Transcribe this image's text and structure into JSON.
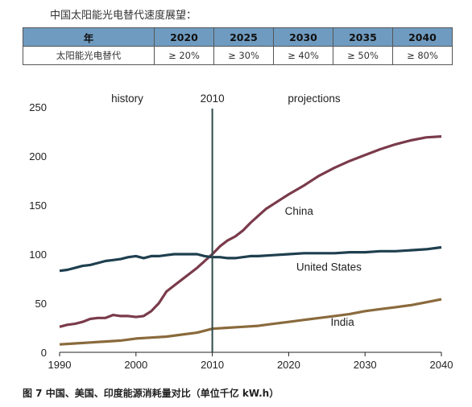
{
  "intro": "中国太阳能光电替代速度展望：",
  "table": {
    "header": [
      "年",
      "2020",
      "2025",
      "2030",
      "2035",
      "2040"
    ],
    "row_label": "太阳能光电替代",
    "row_values": [
      "≥ 20%",
      "≥ 30%",
      "≥ 40%",
      "≥ 50%",
      "≥ 80%"
    ]
  },
  "caption": "图 7   中国、美国、印度能源消耗量对比（单位千亿 kW.h）",
  "chart_data": {
    "type": "line",
    "title": "",
    "xlabel": "",
    "ylabel": "",
    "xlim": [
      1990,
      2040
    ],
    "ylim": [
      0,
      250
    ],
    "xticks": [
      1990,
      2000,
      2010,
      2020,
      2030,
      2040
    ],
    "yticks": [
      0,
      50,
      100,
      150,
      200,
      250
    ],
    "grid": false,
    "annotations": {
      "history": "history",
      "split_year": 2010,
      "split_label": "2010",
      "projections": "projections"
    },
    "series": [
      {
        "name": "China",
        "color": "#7a3b4b",
        "x": [
          1990,
          1991,
          1992,
          1993,
          1994,
          1995,
          1996,
          1997,
          1998,
          1999,
          2000,
          2001,
          2002,
          2003,
          2004,
          2005,
          2006,
          2007,
          2008,
          2009,
          2010,
          2011,
          2012,
          2013,
          2014,
          2015,
          2016,
          2017,
          2018,
          2019,
          2020,
          2022,
          2024,
          2026,
          2028,
          2030,
          2032,
          2034,
          2036,
          2038,
          2040
        ],
        "y": [
          26,
          28,
          29,
          31,
          34,
          35,
          35,
          38,
          37,
          37,
          36,
          37,
          42,
          50,
          62,
          68,
          74,
          80,
          86,
          93,
          100,
          108,
          114,
          118,
          124,
          132,
          139,
          146,
          151,
          156,
          161,
          170,
          180,
          188,
          195,
          201,
          207,
          212,
          216,
          219,
          220
        ]
      },
      {
        "name": "United States",
        "color": "#1f3f4f",
        "x": [
          1990,
          1991,
          1992,
          1993,
          1994,
          1995,
          1996,
          1997,
          1998,
          1999,
          2000,
          2001,
          2002,
          2003,
          2004,
          2005,
          2006,
          2007,
          2008,
          2009,
          2010,
          2011,
          2012,
          2013,
          2014,
          2015,
          2016,
          2018,
          2020,
          2022,
          2024,
          2026,
          2028,
          2030,
          2032,
          2034,
          2036,
          2038,
          2040
        ],
        "y": [
          83,
          84,
          86,
          88,
          89,
          91,
          93,
          94,
          95,
          97,
          98,
          96,
          98,
          98,
          99,
          100,
          100,
          100,
          100,
          98,
          97,
          97,
          96,
          96,
          97,
          98,
          98,
          99,
          100,
          101,
          101,
          101,
          102,
          102,
          103,
          103,
          104,
          105,
          107
        ]
      },
      {
        "name": "India",
        "color": "#8a6a3c",
        "x": [
          1990,
          1992,
          1994,
          1996,
          1998,
          2000,
          2002,
          2004,
          2006,
          2008,
          2010,
          2012,
          2014,
          2016,
          2018,
          2020,
          2022,
          2024,
          2026,
          2028,
          2030,
          2032,
          2034,
          2036,
          2038,
          2040
        ],
        "y": [
          8,
          9,
          10,
          11,
          12,
          14,
          15,
          16,
          18,
          20,
          24,
          25,
          26,
          27,
          29,
          31,
          33,
          35,
          37,
          39,
          42,
          44,
          46,
          48,
          51,
          54
        ]
      }
    ]
  }
}
